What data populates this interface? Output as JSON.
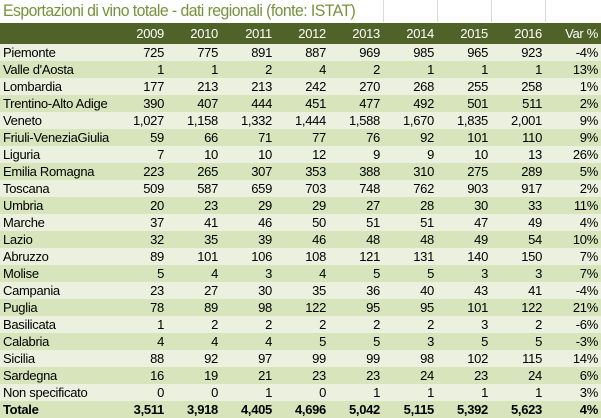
{
  "title": "Esportazioni di vino totale - dati regionali (fonte: ISTAT)",
  "colors": {
    "header_bg": "#4F6228",
    "title": "#76923C",
    "row_light": "#EBF1DE",
    "row_dark": "#D8E4BC"
  },
  "columns": [
    "",
    "2009",
    "2010",
    "2011",
    "2012",
    "2013",
    "2014",
    "2015",
    "2016",
    "Var %"
  ],
  "rows": [
    [
      "Piemonte",
      "725",
      "775",
      "891",
      "887",
      "969",
      "985",
      "965",
      "923",
      "-4%"
    ],
    [
      "Valle d'Aosta",
      "1",
      "1",
      "2",
      "4",
      "2",
      "1",
      "1",
      "1",
      "13%"
    ],
    [
      "Lombardia",
      "177",
      "213",
      "213",
      "242",
      "270",
      "268",
      "255",
      "258",
      "1%"
    ],
    [
      "Trentino-Alto Adige",
      "390",
      "407",
      "444",
      "451",
      "477",
      "492",
      "501",
      "511",
      "2%"
    ],
    [
      "Veneto",
      "1,027",
      "1,158",
      "1,332",
      "1,444",
      "1,588",
      "1,670",
      "1,835",
      "2,001",
      "9%"
    ],
    [
      "Friuli-VeneziaGiulia",
      "59",
      "66",
      "71",
      "77",
      "76",
      "92",
      "101",
      "110",
      "9%"
    ],
    [
      "Liguria",
      "7",
      "10",
      "10",
      "12",
      "9",
      "9",
      "10",
      "13",
      "26%"
    ],
    [
      "Emilia Romagna",
      "223",
      "265",
      "307",
      "353",
      "388",
      "310",
      "275",
      "289",
      "5%"
    ],
    [
      "Toscana",
      "509",
      "587",
      "659",
      "703",
      "748",
      "762",
      "903",
      "917",
      "2%"
    ],
    [
      "Umbria",
      "20",
      "23",
      "29",
      "29",
      "27",
      "28",
      "30",
      "33",
      "11%"
    ],
    [
      "Marche",
      "37",
      "41",
      "46",
      "50",
      "51",
      "51",
      "47",
      "49",
      "4%"
    ],
    [
      "Lazio",
      "32",
      "35",
      "39",
      "46",
      "48",
      "48",
      "49",
      "54",
      "10%"
    ],
    [
      "Abruzzo",
      "89",
      "101",
      "106",
      "108",
      "121",
      "131",
      "140",
      "150",
      "7%"
    ],
    [
      "Molise",
      "5",
      "4",
      "3",
      "4",
      "5",
      "5",
      "3",
      "3",
      "7%"
    ],
    [
      "Campania",
      "23",
      "27",
      "30",
      "35",
      "36",
      "40",
      "43",
      "41",
      "-4%"
    ],
    [
      "Puglia",
      "78",
      "89",
      "98",
      "122",
      "95",
      "95",
      "101",
      "122",
      "21%"
    ],
    [
      "Basilicata",
      "1",
      "2",
      "2",
      "2",
      "2",
      "2",
      "3",
      "2",
      "-6%"
    ],
    [
      "Calabria",
      "4",
      "4",
      "4",
      "5",
      "5",
      "3",
      "5",
      "5",
      "-3%"
    ],
    [
      "Sicilia",
      "88",
      "92",
      "97",
      "99",
      "99",
      "98",
      "102",
      "115",
      "14%"
    ],
    [
      "Sardegna",
      "16",
      "19",
      "21",
      "23",
      "23",
      "24",
      "23",
      "24",
      "6%"
    ],
    [
      "Non specificato",
      "0",
      "0",
      "1",
      "0",
      "1",
      "1",
      "1",
      "1",
      "3%"
    ]
  ],
  "total": [
    "Totale",
    "3,511",
    "3,918",
    "4,405",
    "4,696",
    "5,042",
    "5,115",
    "5,392",
    "5,623",
    "4%"
  ]
}
